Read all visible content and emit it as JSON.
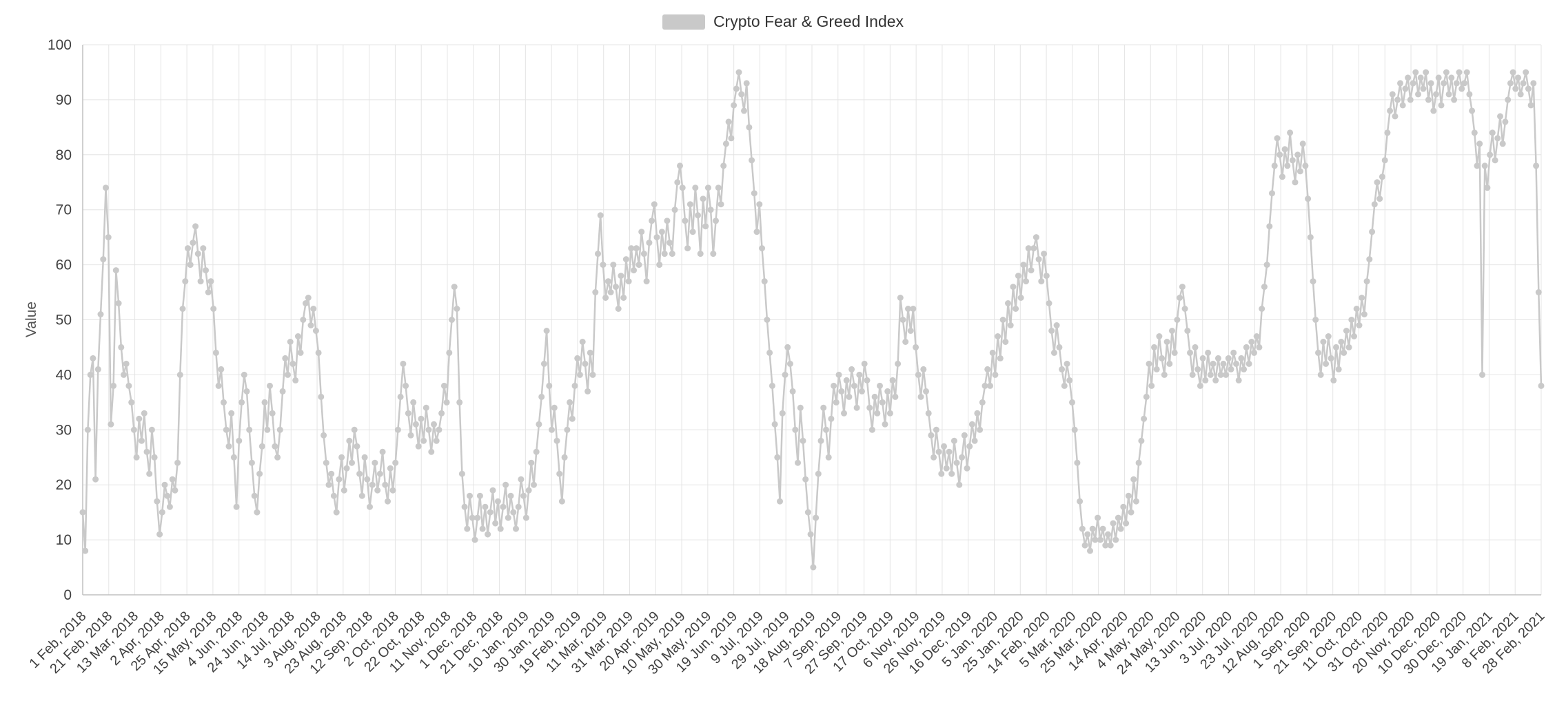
{
  "page": {
    "background": "#ffffff"
  },
  "legend": {
    "label": "Crypto Fear & Greed Index",
    "swatch_color": "#c9c9c9",
    "position": "top"
  },
  "colors": {
    "series": "#c9c9c9",
    "grid": "#e4e4e4",
    "axis": "#c0c0c0",
    "tick_text": "#404040",
    "axis_title_text": "#555555"
  },
  "chart_data": {
    "type": "line",
    "title": "Crypto Fear & Greed Index",
    "xlabel": "",
    "ylabel": "Value",
    "ylim": [
      0,
      100
    ],
    "y_ticks": [
      0,
      10,
      20,
      30,
      40,
      50,
      60,
      70,
      80,
      90,
      100
    ],
    "grid": true,
    "legend_position": "top",
    "marker": "circle",
    "x_tick_labels": [
      "1 Feb, 2018",
      "21 Feb, 2018",
      "13 Mar, 2018",
      "2 Apr, 2018",
      "25 Apr, 2018",
      "15 May, 2018",
      "4 Jun, 2018",
      "24 Jun, 2018",
      "14 Jul, 2018",
      "3 Aug, 2018",
      "23 Aug, 2018",
      "12 Sep, 2018",
      "2 Oct, 2018",
      "22 Oct, 2018",
      "11 Nov, 2018",
      "1 Dec, 2018",
      "21 Dec, 2018",
      "10 Jan, 2019",
      "30 Jan, 2019",
      "19 Feb, 2019",
      "11 Mar, 2019",
      "31 Mar, 2019",
      "20 Apr, 2019",
      "10 May, 2019",
      "30 May, 2019",
      "19 Jun, 2019",
      "9 Jul, 2019",
      "29 Jul, 2019",
      "18 Aug, 2019",
      "7 Sep, 2019",
      "27 Sep, 2019",
      "17 Oct, 2019",
      "6 Nov, 2019",
      "26 Nov, 2019",
      "16 Dec, 2019",
      "5 Jan, 2020",
      "25 Jan, 2020",
      "14 Feb, 2020",
      "5 Mar, 2020",
      "25 Mar, 2020",
      "14 Apr, 2020",
      "4 May, 2020",
      "24 May, 2020",
      "13 Jun, 2020",
      "3 Jul, 2020",
      "23 Jul, 2020",
      "12 Aug, 2020",
      "1 Sep, 2020",
      "21 Sep, 2020",
      "11 Oct, 2020",
      "31 Oct, 2020",
      "20 Nov, 2020",
      "10 Dec, 2020",
      "30 Dec, 2020",
      "19 Jan, 2021",
      "8 Feb, 2021",
      "28 Feb, 2021"
    ],
    "x_range_note": "daily index values from 1 Feb 2018 to 28 Feb 2021, sampled",
    "series": [
      {
        "name": "Crypto Fear & Greed Index",
        "color": "#c9c9c9",
        "values": [
          15,
          8,
          30,
          40,
          43,
          21,
          41,
          51,
          61,
          74,
          65,
          31,
          38,
          59,
          53,
          45,
          40,
          42,
          38,
          35,
          30,
          25,
          32,
          28,
          33,
          26,
          22,
          30,
          25,
          17,
          11,
          15,
          20,
          18,
          16,
          21,
          19,
          24,
          40,
          52,
          57,
          63,
          60,
          64,
          67,
          62,
          57,
          63,
          59,
          55,
          57,
          52,
          44,
          38,
          41,
          35,
          30,
          27,
          33,
          25,
          16,
          28,
          35,
          40,
          37,
          30,
          24,
          18,
          15,
          22,
          27,
          35,
          30,
          38,
          33,
          27,
          25,
          30,
          37,
          43,
          40,
          46,
          42,
          39,
          47,
          44,
          50,
          53,
          54,
          49,
          52,
          48,
          44,
          36,
          29,
          24,
          20,
          22,
          18,
          15,
          21,
          25,
          19,
          23,
          28,
          24,
          30,
          27,
          22,
          18,
          25,
          21,
          16,
          20,
          24,
          19,
          22,
          26,
          20,
          17,
          23,
          19,
          24,
          30,
          36,
          42,
          38,
          33,
          29,
          35,
          31,
          27,
          32,
          28,
          34,
          30,
          26,
          31,
          28,
          30,
          33,
          38,
          35,
          44,
          50,
          56,
          52,
          35,
          22,
          16,
          12,
          18,
          14,
          10,
          14,
          18,
          12,
          16,
          11,
          15,
          19,
          13,
          17,
          12,
          16,
          20,
          14,
          18,
          15,
          12,
          16,
          21,
          18,
          14,
          19,
          24,
          20,
          26,
          31,
          36,
          42,
          48,
          38,
          30,
          34,
          28,
          22,
          17,
          25,
          30,
          35,
          32,
          38,
          43,
          40,
          46,
          42,
          37,
          44,
          40,
          55,
          62,
          69,
          60,
          54,
          57,
          55,
          60,
          56,
          52,
          58,
          54,
          61,
          57,
          63,
          59,
          63,
          60,
          66,
          62,
          57,
          64,
          68,
          71,
          65,
          60,
          66,
          62,
          68,
          64,
          62,
          70,
          75,
          78,
          74,
          68,
          63,
          71,
          66,
          74,
          69,
          62,
          72,
          67,
          74,
          70,
          62,
          68,
          74,
          71,
          78,
          82,
          86,
          83,
          89,
          92,
          95,
          91,
          88,
          93,
          85,
          79,
          73,
          66,
          71,
          63,
          57,
          50,
          44,
          38,
          31,
          25,
          17,
          33,
          40,
          45,
          42,
          37,
          30,
          24,
          34,
          28,
          21,
          15,
          11,
          5,
          14,
          22,
          28,
          34,
          30,
          25,
          32,
          38,
          35,
          40,
          37,
          33,
          39,
          36,
          41,
          38,
          34,
          40,
          37,
          42,
          39,
          34,
          30,
          36,
          33,
          38,
          35,
          31,
          37,
          33,
          39,
          36,
          42,
          54,
          50,
          46,
          52,
          48,
          52,
          45,
          40,
          36,
          41,
          37,
          33,
          29,
          25,
          30,
          26,
          22,
          27,
          23,
          26,
          22,
          28,
          24,
          20,
          25,
          29,
          23,
          27,
          31,
          28,
          33,
          30,
          35,
          38,
          41,
          38,
          44,
          40,
          47,
          43,
          50,
          46,
          53,
          49,
          56,
          52,
          58,
          54,
          60,
          57,
          63,
          59,
          63,
          65,
          61,
          57,
          62,
          58,
          53,
          48,
          44,
          49,
          45,
          41,
          38,
          42,
          39,
          35,
          30,
          24,
          17,
          12,
          9,
          11,
          8,
          12,
          10,
          14,
          10,
          12,
          9,
          11,
          9,
          13,
          10,
          14,
          12,
          16,
          13,
          18,
          15,
          21,
          17,
          24,
          28,
          32,
          36,
          42,
          38,
          45,
          41,
          47,
          43,
          40,
          46,
          42,
          48,
          44,
          50,
          54,
          56,
          52,
          48,
          44,
          40,
          45,
          41,
          38,
          43,
          39,
          44,
          40,
          42,
          39,
          43,
          40,
          42,
          40,
          43,
          41,
          44,
          42,
          39,
          43,
          41,
          45,
          42,
          46,
          44,
          47,
          45,
          52,
          56,
          60,
          67,
          73,
          78,
          83,
          80,
          76,
          81,
          78,
          84,
          79,
          75,
          80,
          77,
          82,
          78,
          72,
          65,
          57,
          50,
          44,
          40,
          46,
          42,
          47,
          43,
          39,
          45,
          41,
          46,
          44,
          48,
          45,
          50,
          47,
          52,
          49,
          54,
          51,
          57,
          61,
          66,
          71,
          75,
          72,
          76,
          79,
          84,
          88,
          91,
          87,
          90,
          93,
          89,
          92,
          94,
          90,
          93,
          95,
          91,
          94,
          92,
          95,
          90,
          93,
          88,
          91,
          94,
          89,
          93,
          95,
          91,
          94,
          90,
          93,
          95,
          92,
          93,
          95,
          91,
          88,
          84,
          78,
          82,
          40,
          78,
          74,
          80,
          84,
          79,
          83,
          87,
          82,
          86,
          90,
          93,
          95,
          92,
          94,
          91,
          93,
          95,
          92,
          89,
          93,
          78,
          55,
          38
        ]
      }
    ]
  }
}
